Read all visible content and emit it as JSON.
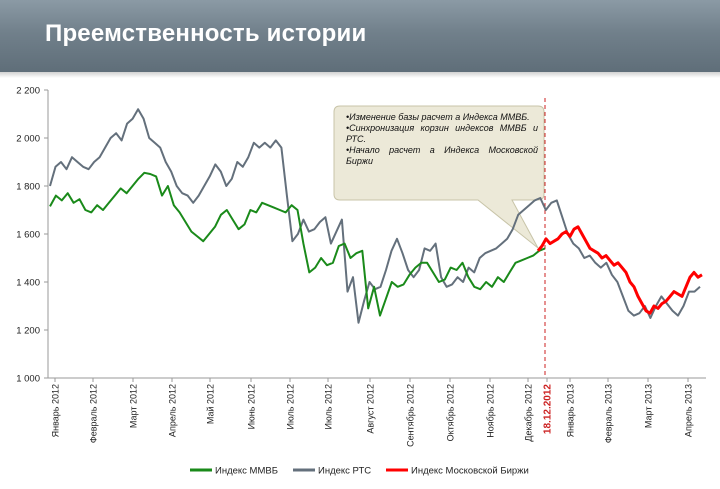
{
  "header": {
    "title": "Преемственность истории"
  },
  "colors": {
    "mmvb": "#1a8a1a",
    "rts": "#64707c",
    "moex": "#ff0000",
    "divider": "#cc2222",
    "callout_fill": "#ece9d8",
    "callout_border": "#c8c4a8"
  },
  "callout": {
    "lines": [
      "•Изменение базы расчет а Индекса ММВБ.",
      "•Синхронизация корзин индексов ММВБ и РТС.",
      "•Начало расчет а Индекса Московской Биржи"
    ]
  },
  "chart_data": {
    "type": "line",
    "ylim": [
      1000,
      2200
    ],
    "y_ticks": [
      "1 000",
      "1 200",
      "1 400",
      "1 600",
      "1 800",
      "2 000",
      "2 200"
    ],
    "y_tick_values": [
      1000,
      1200,
      1400,
      1600,
      1800,
      2000,
      2200
    ],
    "grid": false,
    "legend_position": "bottom",
    "x_tick_labels": [
      "Январь 2012",
      "Февраль 2012",
      "Март 2012",
      "Апрель 2012",
      "Май 2012",
      "Июнь 2012",
      "Июль 2012",
      "Июль 2012",
      "Август 2012",
      "Сентябрь 2012",
      "Октябрь 2012",
      "Ноябрь 2012",
      "Декабрь 2012",
      "18.12.2012",
      "Январь 2013",
      "Февраль 2013",
      "Март 2013",
      "Апрель 2013"
    ],
    "x_tick_highlight": "18.12.2012",
    "x_divider": "18.12.2012",
    "series": [
      {
        "name": "Индекс ММВБ",
        "color": "#1a8a1a",
        "values": [
          1715,
          1760,
          1740,
          1770,
          1730,
          1745,
          1700,
          1690,
          1720,
          1700,
          1730,
          1760,
          1790,
          1770,
          1800,
          1830,
          1855,
          1850,
          1840,
          1760,
          1800,
          1720,
          1690,
          1650,
          1610,
          1590,
          1570,
          1600,
          1630,
          1680,
          1700,
          1660,
          1620,
          1640,
          1700,
          1690,
          1730,
          1720,
          1710,
          1700,
          1690,
          1720,
          1700,
          1560,
          1440,
          1460,
          1500,
          1470,
          1480,
          1550,
          1560,
          1500,
          1520,
          1530,
          1290,
          1380,
          1260,
          1330,
          1400,
          1380,
          1390,
          1430,
          1460,
          1480,
          1480,
          1440,
          1400,
          1410,
          1460,
          1450,
          1480,
          1420,
          1380,
          1370,
          1400,
          1380,
          1420,
          1400,
          1440,
          1480,
          1490,
          1500,
          1510,
          1530,
          1540
        ]
      },
      {
        "name": "Индекс РТС",
        "color": "#64707c",
        "values": [
          1800,
          1880,
          1900,
          1870,
          1920,
          1900,
          1880,
          1870,
          1900,
          1920,
          1960,
          2000,
          2020,
          1990,
          2060,
          2080,
          2120,
          2080,
          2000,
          1980,
          1960,
          1900,
          1860,
          1800,
          1770,
          1760,
          1730,
          1760,
          1800,
          1840,
          1890,
          1860,
          1800,
          1830,
          1900,
          1880,
          1920,
          1980,
          1960,
          1980,
          1960,
          1990,
          1960,
          1760,
          1570,
          1600,
          1660,
          1610,
          1620,
          1650,
          1670,
          1560,
          1610,
          1660,
          1360,
          1420,
          1230,
          1320,
          1400,
          1370,
          1380,
          1450,
          1530,
          1580,
          1520,
          1450,
          1420,
          1450,
          1540,
          1530,
          1560,
          1420,
          1380,
          1390,
          1420,
          1400,
          1460,
          1440,
          1500,
          1520,
          1530,
          1540,
          1560,
          1580,
          1620,
          1680,
          1700,
          1720,
          1740,
          1750,
          1700,
          1730,
          1740,
          1670,
          1600,
          1560,
          1540,
          1500,
          1510,
          1480,
          1460,
          1480,
          1430,
          1400,
          1340,
          1280,
          1260,
          1270,
          1300,
          1250,
          1300,
          1340,
          1310,
          1280,
          1260,
          1300,
          1360,
          1360,
          1380
        ]
      },
      {
        "name": "Индекс Московской Биржи",
        "color": "#ff0000",
        "values": [
          1530,
          1550,
          1580,
          1560,
          1570,
          1580,
          1600,
          1610,
          1590,
          1620,
          1630,
          1600,
          1570,
          1540,
          1530,
          1520,
          1500,
          1510,
          1490,
          1470,
          1480,
          1460,
          1440,
          1400,
          1380,
          1340,
          1310,
          1280,
          1270,
          1300,
          1290,
          1310,
          1320,
          1340,
          1360,
          1350,
          1340,
          1380,
          1420,
          1440,
          1420,
          1430
        ]
      }
    ]
  }
}
